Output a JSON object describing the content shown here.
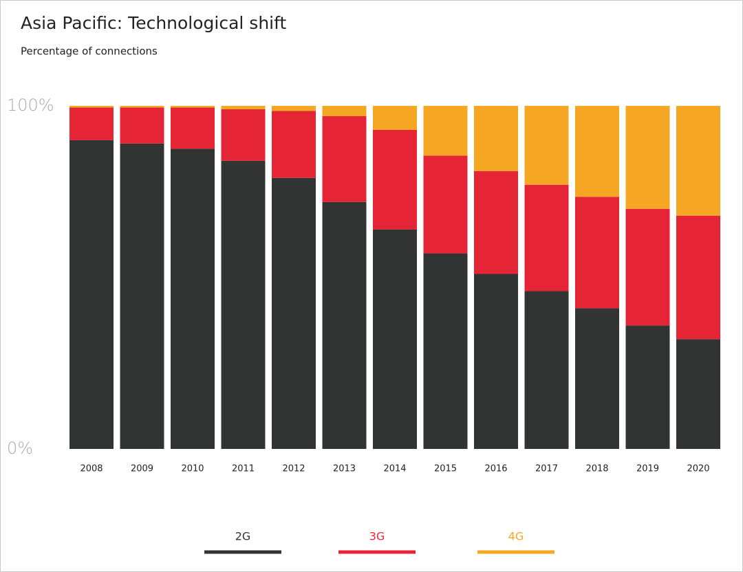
{
  "chart_data": {
    "type": "stacked_bar",
    "title": "Asia Pacific: Technological shift",
    "subtitle": "Percentage of connections",
    "categories": [
      "2008",
      "2009",
      "2010",
      "2011",
      "2012",
      "2013",
      "2014",
      "2015",
      "2016",
      "2017",
      "2018",
      "2019",
      "2020"
    ],
    "series": [
      {
        "name": "2G",
        "color": "#323333",
        "values": [
          90,
          89,
          87.5,
          84,
          79,
          72,
          64,
          57,
          51,
          46,
          41,
          36,
          32
        ]
      },
      {
        "name": "3G",
        "color": "#e52535",
        "values": [
          9.5,
          10.5,
          12,
          15,
          19.5,
          25,
          29,
          28.5,
          30,
          31,
          32.5,
          34,
          36
        ]
      },
      {
        "name": "4G",
        "color": "#f5a623",
        "values": [
          0.5,
          0.5,
          0.5,
          1,
          1.5,
          3,
          7,
          14.5,
          19,
          23,
          26.5,
          30,
          32
        ]
      }
    ],
    "ylim": [
      0,
      100
    ],
    "yticks": [
      {
        "value": 0,
        "label": "0%"
      },
      {
        "value": 100,
        "label": "100%"
      }
    ],
    "grid": false
  }
}
